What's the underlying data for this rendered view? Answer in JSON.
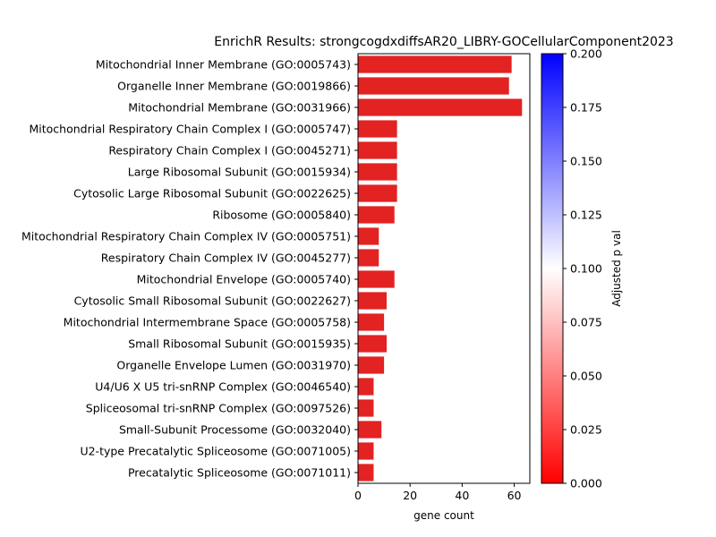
{
  "chart_data": {
    "type": "bar",
    "orientation": "horizontal",
    "title": "EnrichR Results: strongcogdxdiffsAR20_LIBRY-GOCellularComponent2023",
    "xlabel": "gene count",
    "ylabel": "",
    "xlim": [
      0,
      66
    ],
    "xticks": [
      0,
      20,
      40,
      60
    ],
    "grid": false,
    "categories": [
      "Mitochondrial Inner Membrane (GO:0005743)",
      "Organelle Inner Membrane (GO:0019866)",
      "Mitochondrial Membrane (GO:0031966)",
      "Mitochondrial Respiratory Chain Complex I (GO:0005747)",
      "Respiratory Chain Complex I (GO:0045271)",
      "Large Ribosomal Subunit (GO:0015934)",
      "Cytosolic Large Ribosomal Subunit (GO:0022625)",
      "Ribosome (GO:0005840)",
      "Mitochondrial Respiratory Chain Complex IV (GO:0005751)",
      "Respiratory Chain Complex IV (GO:0045277)",
      "Mitochondrial Envelope (GO:0005740)",
      "Cytosolic Small Ribosomal Subunit (GO:0022627)",
      "Mitochondrial Intermembrane Space (GO:0005758)",
      "Small Ribosomal Subunit (GO:0015935)",
      "Organelle Envelope Lumen (GO:0031970)",
      "U4/U6 X U5 tri-snRNP Complex (GO:0046540)",
      "Spliceosomal tri-snRNP Complex (GO:0097526)",
      "Small-Subunit Processome (GO:0032040)",
      "U2-type Precatalytic Spliceosome (GO:0071005)",
      "Precatalytic Spliceosome (GO:0071011)"
    ],
    "values": [
      59,
      58,
      63,
      15,
      15,
      15,
      15,
      14,
      8,
      8,
      14,
      11,
      10,
      11,
      10,
      6,
      6,
      9,
      6,
      6
    ],
    "bar_color": "#e32222",
    "colorbar": {
      "label": "Adjusted p val",
      "range": [
        0,
        0.2
      ],
      "ticks": [
        "0.000",
        "0.025",
        "0.050",
        "0.075",
        "0.100",
        "0.125",
        "0.150",
        "0.175",
        "0.200"
      ],
      "colormap": [
        "#ff0000",
        "#ffffff",
        "#0000ff"
      ]
    }
  }
}
